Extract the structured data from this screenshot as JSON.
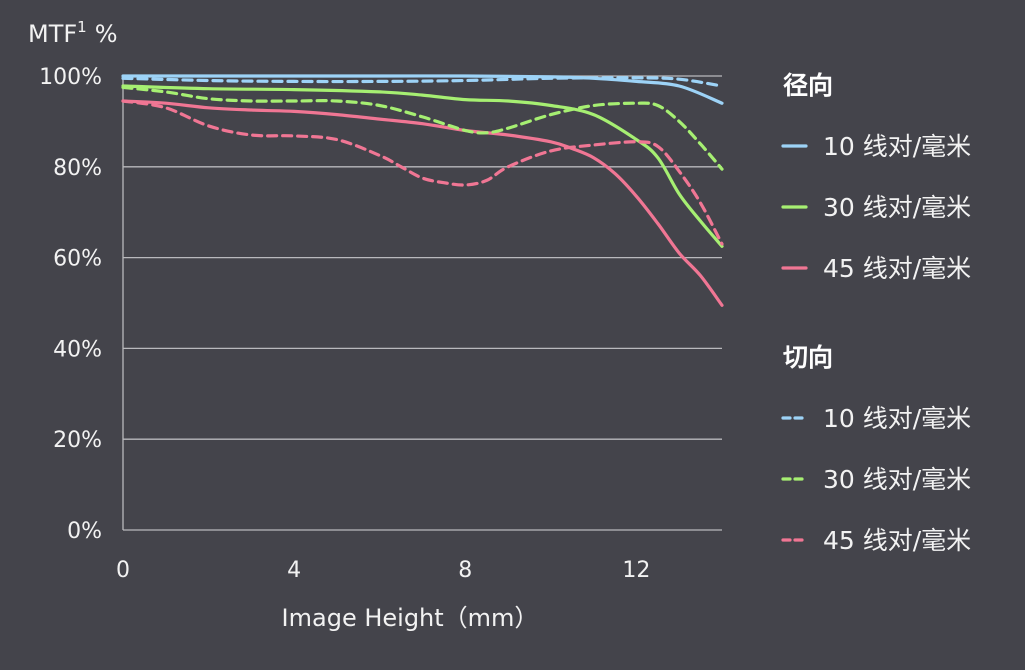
{
  "chart_data": {
    "type": "line",
    "ylabel": "MTF",
    "ylabel_superscript": "1",
    "ylabel_unit": "%",
    "xlabel": "Image Height（mm）",
    "xlim": [
      0,
      14
    ],
    "ylim": [
      0,
      100
    ],
    "xticks": [
      0,
      4,
      8,
      12
    ],
    "xtick_labels": [
      "0",
      "4",
      "8",
      "12"
    ],
    "yticks": [
      0,
      20,
      40,
      60,
      80,
      100
    ],
    "ytick_labels": [
      "0%",
      "20%",
      "40%",
      "60%",
      "80%",
      "100%"
    ],
    "grid": "horizontal",
    "legend_position": "right",
    "legend_groups": [
      {
        "title": "径向",
        "style": "solid",
        "entries": [
          "10 线对/毫米",
          "30 线对/毫米",
          "45 线对/毫米"
        ]
      },
      {
        "title": "切向",
        "style": "dashed",
        "entries": [
          "10 线对/毫米",
          "30 线对/毫米",
          "45 线对/毫米"
        ]
      }
    ],
    "series": [
      {
        "name": "10 线对/毫米",
        "group": "径向",
        "style": "solid",
        "color": "#9dd3f7",
        "x": [
          0,
          2,
          4,
          6,
          8,
          10,
          11,
          12,
          13,
          14
        ],
        "y": [
          100,
          100,
          100,
          100,
          100,
          99.8,
          99.5,
          98.8,
          97.8,
          94
        ]
      },
      {
        "name": "30 线对/毫米",
        "group": "径向",
        "style": "solid",
        "color": "#a6ef72",
        "x": [
          0,
          2,
          4,
          6,
          7,
          8,
          9,
          10,
          11,
          12,
          12.5,
          13,
          13.5,
          14
        ],
        "y": [
          97.8,
          97.2,
          97,
          96.5,
          95.8,
          94.8,
          94.5,
          93.5,
          91.5,
          86,
          82,
          74,
          68,
          62.5
        ]
      },
      {
        "name": "45 线对/毫米",
        "group": "径向",
        "style": "solid",
        "color": "#f07694",
        "x": [
          0,
          1,
          2,
          3,
          4,
          5,
          6,
          7,
          8,
          9,
          10,
          10.5,
          11,
          11.5,
          12,
          12.5,
          13,
          13.5,
          14
        ],
        "y": [
          94.5,
          94,
          93,
          92.5,
          92.2,
          91.5,
          90.5,
          89.5,
          88,
          87,
          85.5,
          84,
          82,
          78.5,
          73.5,
          67.5,
          61,
          56,
          49.5
        ]
      },
      {
        "name": "10 线对/毫米",
        "group": "切向",
        "style": "dashed",
        "color": "#9dd3f7",
        "x": [
          0,
          2,
          4,
          6,
          8,
          10,
          12,
          13,
          14
        ],
        "y": [
          99.5,
          99,
          98.8,
          98.8,
          99,
          99.5,
          99.6,
          99.3,
          97.8
        ]
      },
      {
        "name": "30 线对/毫米",
        "group": "切向",
        "style": "dashed",
        "color": "#a6ef72",
        "x": [
          0,
          1,
          2,
          3,
          4,
          5,
          6,
          7,
          8,
          8.5,
          9,
          10,
          11,
          12,
          12.5,
          13,
          13.5,
          14
        ],
        "y": [
          97.5,
          96.5,
          95,
          94.5,
          94.5,
          94.5,
          93.5,
          91,
          88,
          87.5,
          88.5,
          91.5,
          93.5,
          94,
          93.5,
          90,
          85,
          79.5
        ]
      },
      {
        "name": "45 线对/毫米",
        "group": "切向",
        "style": "dashed",
        "color": "#f07694",
        "x": [
          0,
          1,
          2,
          3,
          4,
          5,
          6,
          6.5,
          7,
          7.5,
          8,
          8.5,
          9,
          10,
          11,
          12,
          12.5,
          13,
          13.5,
          14
        ],
        "y": [
          94.5,
          93,
          89,
          87,
          86.8,
          86,
          82.5,
          80,
          77.5,
          76.5,
          76,
          77,
          80,
          83.5,
          84.8,
          85.5,
          84.5,
          79,
          72,
          63
        ]
      }
    ]
  }
}
